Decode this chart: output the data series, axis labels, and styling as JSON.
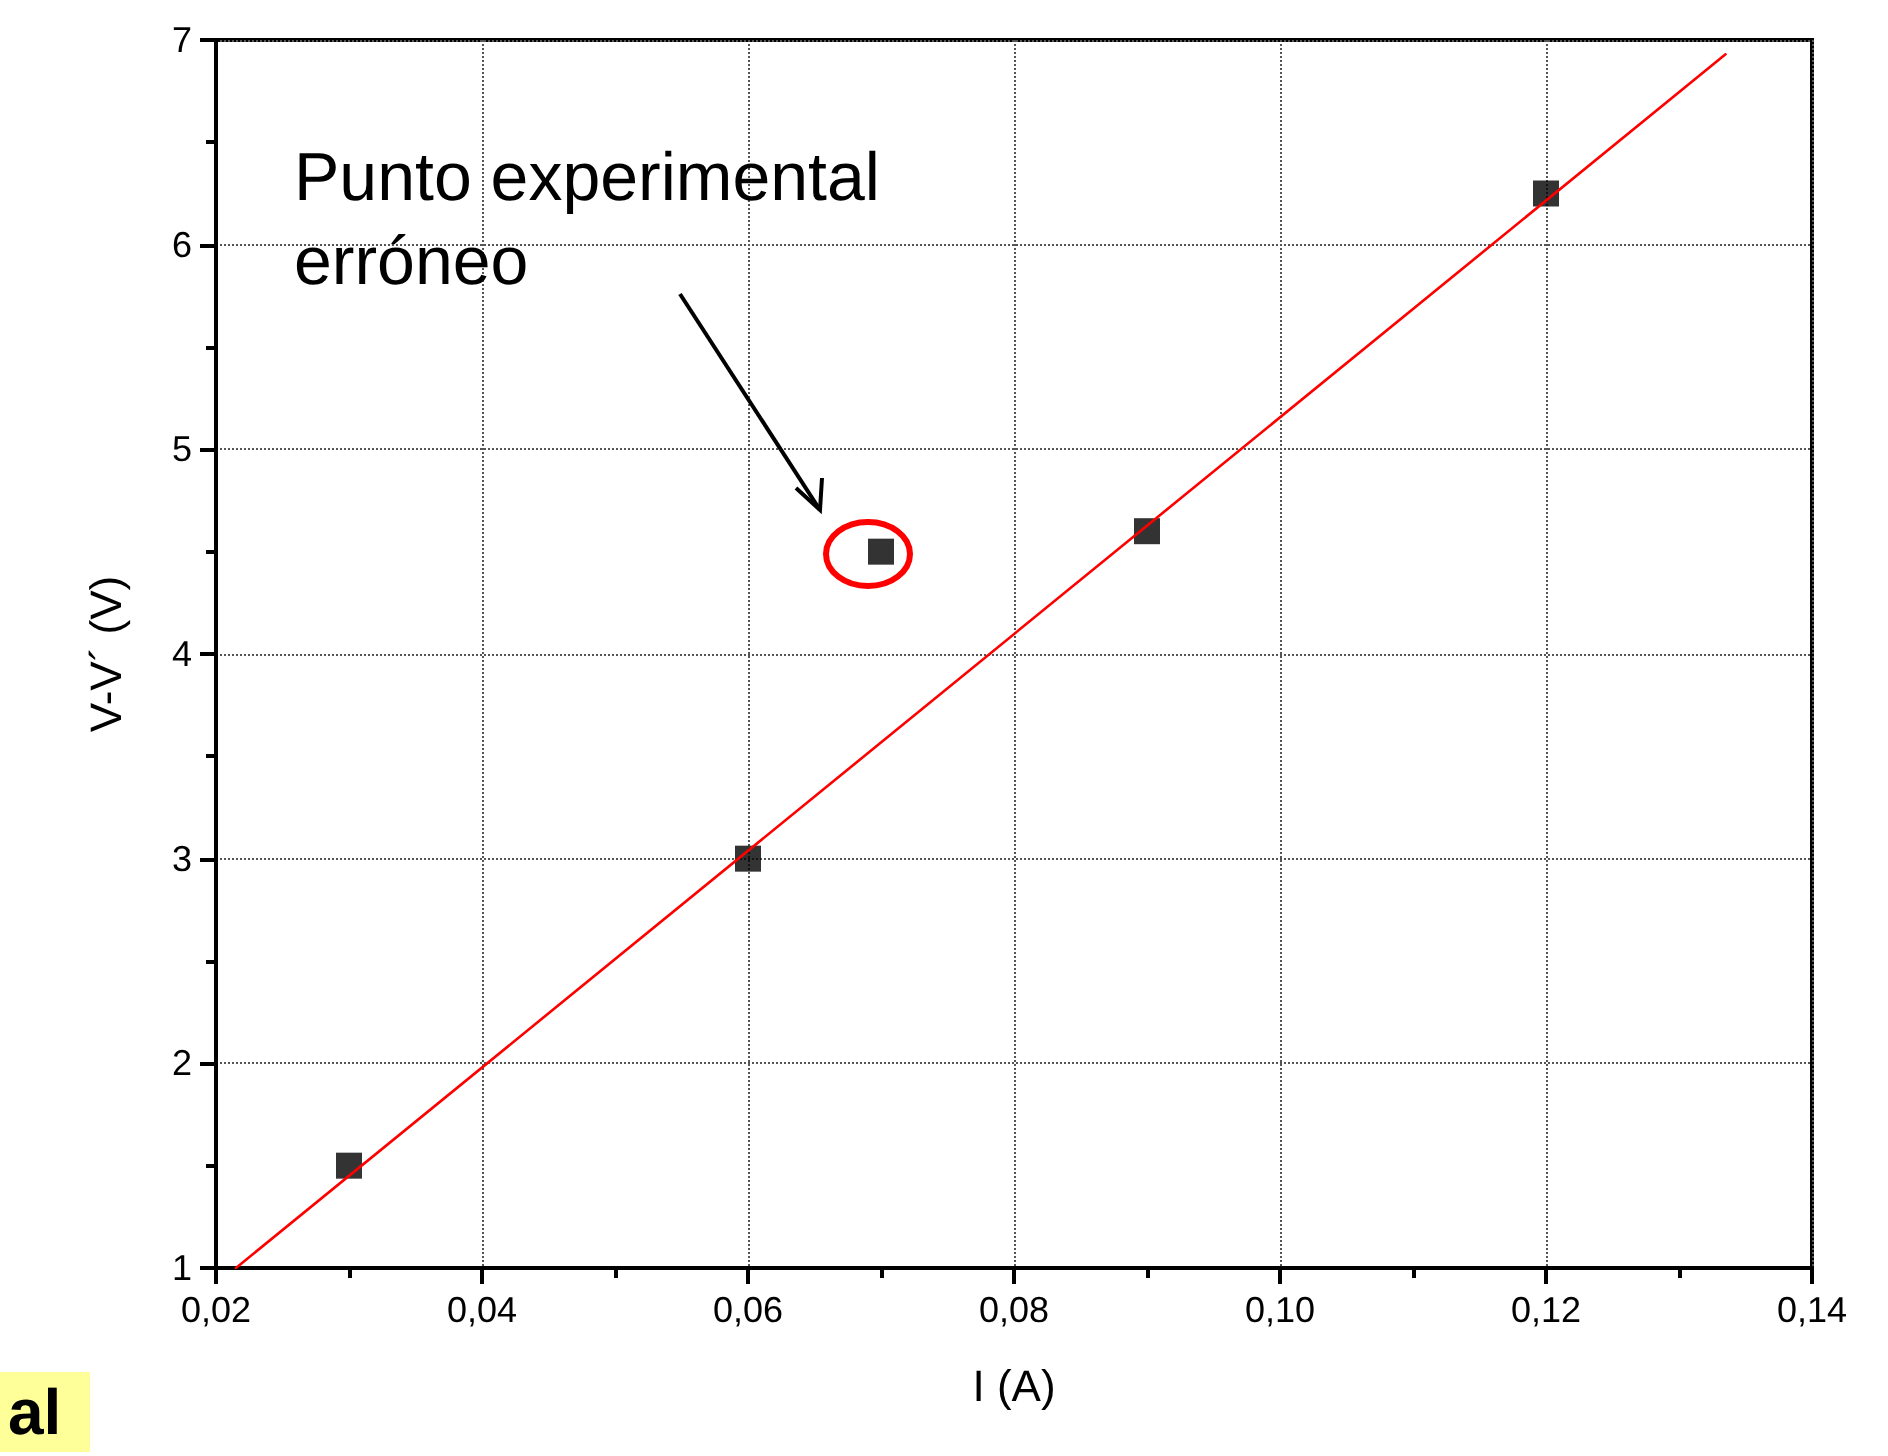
{
  "chart_data": {
    "type": "scatter",
    "xlabel": "I (A)",
    "ylabel": "V-V´ (V)",
    "x": [
      0.03,
      0.06,
      0.07,
      0.09,
      0.12
    ],
    "series": [
      {
        "color": "#000000",
        "marker": "square",
        "values": [
          1.5,
          3.0,
          4.5,
          4.6,
          6.25
        ]
      },
      {
        "type": "line",
        "color": "#ff0000",
        "marker": "none",
        "line_style": "solid",
        "x": [
          0.0215,
          0.1335
        ],
        "values": [
          1,
          6.93
        ]
      }
    ],
    "xlim": [
      0.02,
      0.14
    ],
    "xticks": [
      {
        "value": 0.02,
        "label": "0,02"
      },
      {
        "value": 0.04,
        "label": "0,04"
      },
      {
        "value": 0.06,
        "label": "0,06"
      },
      {
        "value": 0.08,
        "label": "0,08"
      },
      {
        "value": 0.1,
        "label": "0,10"
      },
      {
        "value": 0.12,
        "label": "0,12"
      },
      {
        "value": 0.14,
        "label": "0,14"
      }
    ],
    "ylim": [
      1,
      7
    ],
    "yticks": [
      1,
      2,
      3,
      4,
      5,
      6,
      7
    ],
    "grid": true,
    "annotations": [
      "Punto experimental\nerróneo",
      "al"
    ]
  }
}
